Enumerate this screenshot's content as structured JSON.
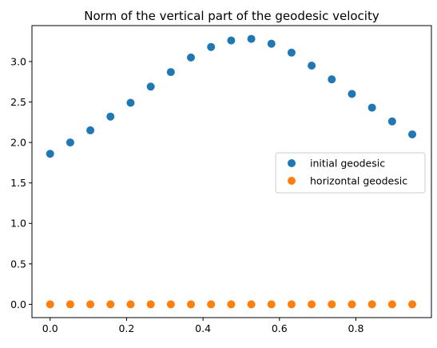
{
  "chart_data": {
    "type": "scatter",
    "title": "Norm of the vertical part of the geodesic velocity",
    "xlabel": "",
    "ylabel": "",
    "xlim": [
      -0.0475,
      0.9975
    ],
    "ylim": [
      -0.164,
      3.444
    ],
    "xticks": [
      0.0,
      0.2,
      0.4,
      0.6,
      0.8
    ],
    "xtick_labels": [
      "0.0",
      "0.2",
      "0.4",
      "0.6",
      "0.8"
    ],
    "yticks": [
      0.0,
      0.5,
      1.0,
      1.5,
      2.0,
      2.5,
      3.0
    ],
    "ytick_labels": [
      "0.0",
      "0.5",
      "1.0",
      "1.5",
      "2.0",
      "2.5",
      "3.0"
    ],
    "grid": false,
    "legend_position": "center-right",
    "x": [
      0.0,
      0.05263,
      0.10526,
      0.15789,
      0.21053,
      0.26316,
      0.31579,
      0.36842,
      0.42105,
      0.47368,
      0.52632,
      0.57895,
      0.63158,
      0.68421,
      0.73684,
      0.78947,
      0.84211,
      0.89474,
      0.94737
    ],
    "series": [
      {
        "name": "initial geodesic",
        "color": "#1f77b4",
        "values": [
          1.86,
          2.0,
          2.15,
          2.32,
          2.49,
          2.69,
          2.87,
          3.05,
          3.18,
          3.26,
          3.28,
          3.22,
          3.11,
          2.95,
          2.78,
          2.6,
          2.43,
          2.26,
          2.1
        ]
      },
      {
        "name": "horizontal geodesic",
        "color": "#ff7f0e",
        "values": [
          0.0,
          0.0,
          0.0,
          0.0,
          0.0,
          0.0,
          0.0,
          0.0,
          0.0,
          0.0,
          0.0,
          0.0,
          0.0,
          0.0,
          0.0,
          0.0,
          0.0,
          0.0,
          0.0
        ]
      }
    ]
  }
}
